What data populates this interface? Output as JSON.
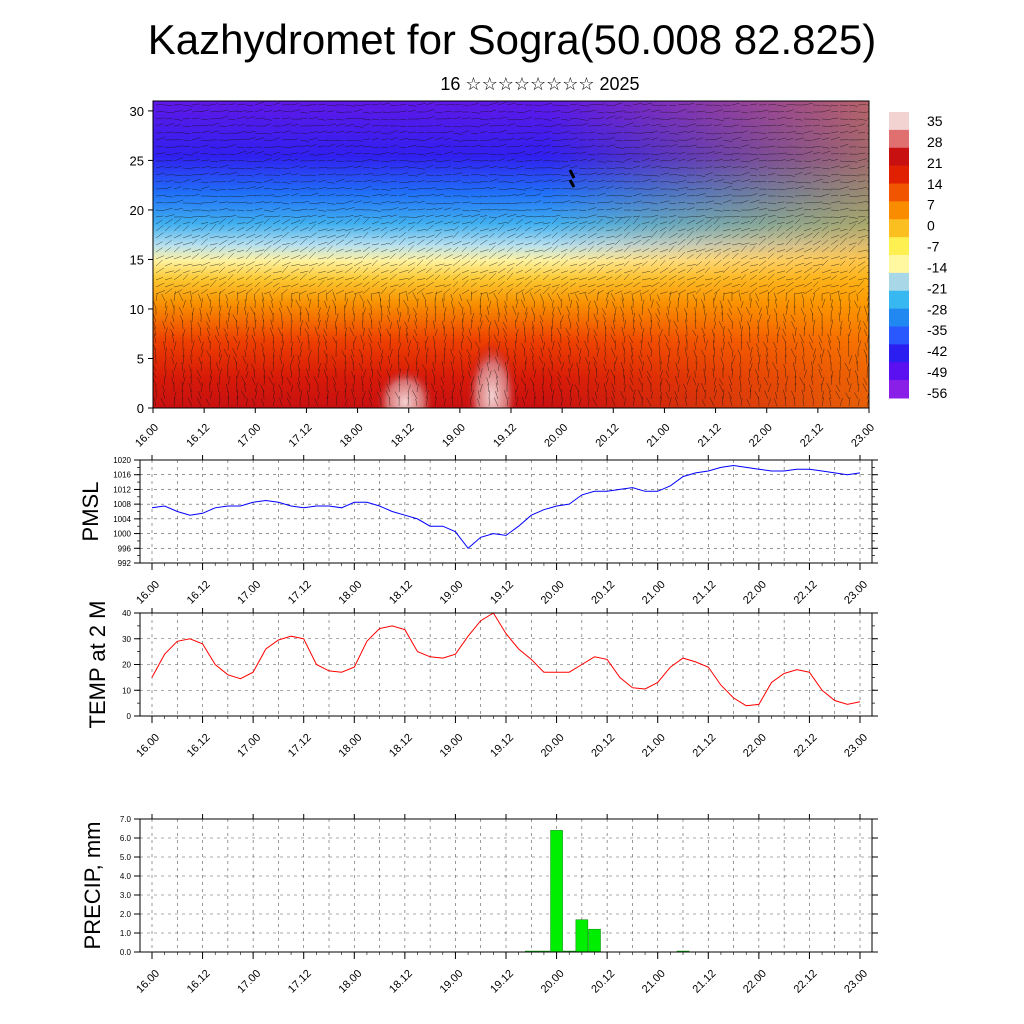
{
  "title": "Kazhydromet for Sogra(50.008 82.825)",
  "subtitle": "16 ☆☆☆☆☆☆☆☆ 2025",
  "chart_data": [
    {
      "type": "heatmap",
      "name": "cross-section",
      "y_ticks": [
        "0",
        "5",
        "10",
        "15",
        "20",
        "25",
        "30"
      ],
      "y_range": [
        0,
        31
      ],
      "x_ticks": [
        "16.00",
        "16.12",
        "17.00",
        "17.12",
        "18.00",
        "18.12",
        "19.00",
        "19.12",
        "20.00",
        "20.12",
        "21.00",
        "21.12",
        "22.00",
        "22.12",
        "23.00"
      ],
      "colorbar_labels": [
        "35",
        "28",
        "21",
        "14",
        "7",
        "0",
        "-7",
        "-14",
        "-21",
        "-28",
        "-35",
        "-42",
        "-49",
        "-56"
      ],
      "colorbar_colors": [
        "#f3d2d2",
        "#e07070",
        "#c81010",
        "#e02000",
        "#f25500",
        "#fa8c00",
        "#fcbf20",
        "#fdf050",
        "#fff8a0",
        "#a8d8e8",
        "#38b8f0",
        "#2088f0",
        "#2a58ff",
        "#2a1ef0",
        "#5a10f0",
        "#8a20e8"
      ]
    },
    {
      "type": "line",
      "name": "PMSL",
      "ylabel": "PMSL",
      "ylim": [
        992,
        1020
      ],
      "y_ticks": [
        "992",
        "996",
        "1000",
        "1004",
        "1008",
        "1012",
        "1016",
        "1020"
      ],
      "x_ticks": [
        "16.00",
        "16.12",
        "17.00",
        "17.12",
        "18.00",
        "18.12",
        "19.00",
        "19.12",
        "20.00",
        "20.12",
        "21.00",
        "21.12",
        "22.00",
        "22.12",
        "23.00"
      ],
      "color": "#0000ff",
      "x": [
        0,
        3,
        6,
        9,
        12,
        15,
        18,
        21,
        24,
        27,
        30,
        33,
        36,
        39,
        42,
        45,
        48,
        51,
        54,
        57,
        60,
        63,
        66,
        69,
        72,
        75,
        78,
        81,
        84,
        87,
        90,
        93,
        96,
        99,
        102,
        105,
        108,
        111,
        114,
        117,
        120,
        123,
        126,
        129,
        132,
        135,
        138,
        141,
        144,
        147,
        150,
        153,
        156,
        159,
        162,
        165,
        168
      ],
      "values": [
        1007,
        1007.5,
        1006,
        1005,
        1005.5,
        1007,
        1007.5,
        1007.5,
        1008.5,
        1009,
        1008.5,
        1007.5,
        1007,
        1007.5,
        1007.5,
        1007,
        1008.5,
        1008.5,
        1007.5,
        1006,
        1005,
        1004,
        1002,
        1002,
        1000.5,
        996,
        999,
        1000,
        999.5,
        1002,
        1005,
        1006.5,
        1007.5,
        1008,
        1010.5,
        1011.5,
        1011.5,
        1012,
        1012.5,
        1011.5,
        1011.5,
        1013,
        1015.5,
        1016.5,
        1017,
        1018,
        1018.5,
        1018,
        1017.5,
        1017,
        1017,
        1017.5,
        1017.5,
        1017,
        1016.5,
        1016,
        1016.5
      ]
    },
    {
      "type": "line",
      "name": "TEMP at 2 M",
      "ylabel": "TEMP at 2 M",
      "ylim": [
        0,
        40
      ],
      "y_ticks": [
        "0",
        "10",
        "20",
        "30",
        "40"
      ],
      "x_ticks": [
        "16.00",
        "16.12",
        "17.00",
        "17.12",
        "18.00",
        "18.12",
        "19.00",
        "19.12",
        "20.00",
        "20.12",
        "21.00",
        "21.12",
        "22.00",
        "22.12",
        "23.00"
      ],
      "color": "#ff0000",
      "x": [
        0,
        3,
        6,
        9,
        12,
        15,
        18,
        21,
        24,
        27,
        30,
        33,
        36,
        39,
        42,
        45,
        48,
        51,
        54,
        57,
        60,
        63,
        66,
        69,
        72,
        75,
        78,
        81,
        84,
        87,
        90,
        93,
        96,
        99,
        102,
        105,
        108,
        111,
        114,
        117,
        120,
        123,
        126,
        129,
        132,
        135,
        138,
        141,
        144,
        147,
        150,
        153,
        156,
        159,
        162,
        165,
        168
      ],
      "values": [
        15,
        24,
        29,
        30,
        28,
        20,
        16,
        14.5,
        17,
        26,
        29.5,
        31,
        30,
        20,
        17.5,
        17,
        19,
        29,
        34,
        35,
        33.5,
        25,
        23,
        22.5,
        24,
        31,
        37,
        40,
        32,
        26,
        22,
        17,
        17,
        17,
        20,
        23,
        22,
        15,
        11,
        10.5,
        13,
        19,
        22.5,
        21,
        19,
        12,
        7,
        4,
        4.5,
        13,
        16.5,
        18,
        17,
        10,
        6,
        4.5,
        5.5
      ]
    },
    {
      "type": "bar",
      "name": "PRECIP",
      "ylabel": "PRECIP, mm",
      "ylim": [
        0,
        7
      ],
      "y_ticks": [
        "0.0",
        "1.0",
        "2.0",
        "3.0",
        "4.0",
        "5.0",
        "6.0",
        "7.0"
      ],
      "x_ticks": [
        "16.00",
        "16.12",
        "17.00",
        "17.12",
        "18.00",
        "18.12",
        "19.00",
        "19.12",
        "20.00",
        "20.12",
        "21.00",
        "21.12",
        "22.00",
        "22.12",
        "23.00"
      ],
      "color": "#00ee00",
      "x": [
        90,
        93,
        96,
        99,
        102,
        105,
        126
      ],
      "values": [
        0.05,
        0.05,
        6.4,
        0.05,
        1.7,
        1.2,
        0.05
      ]
    }
  ]
}
